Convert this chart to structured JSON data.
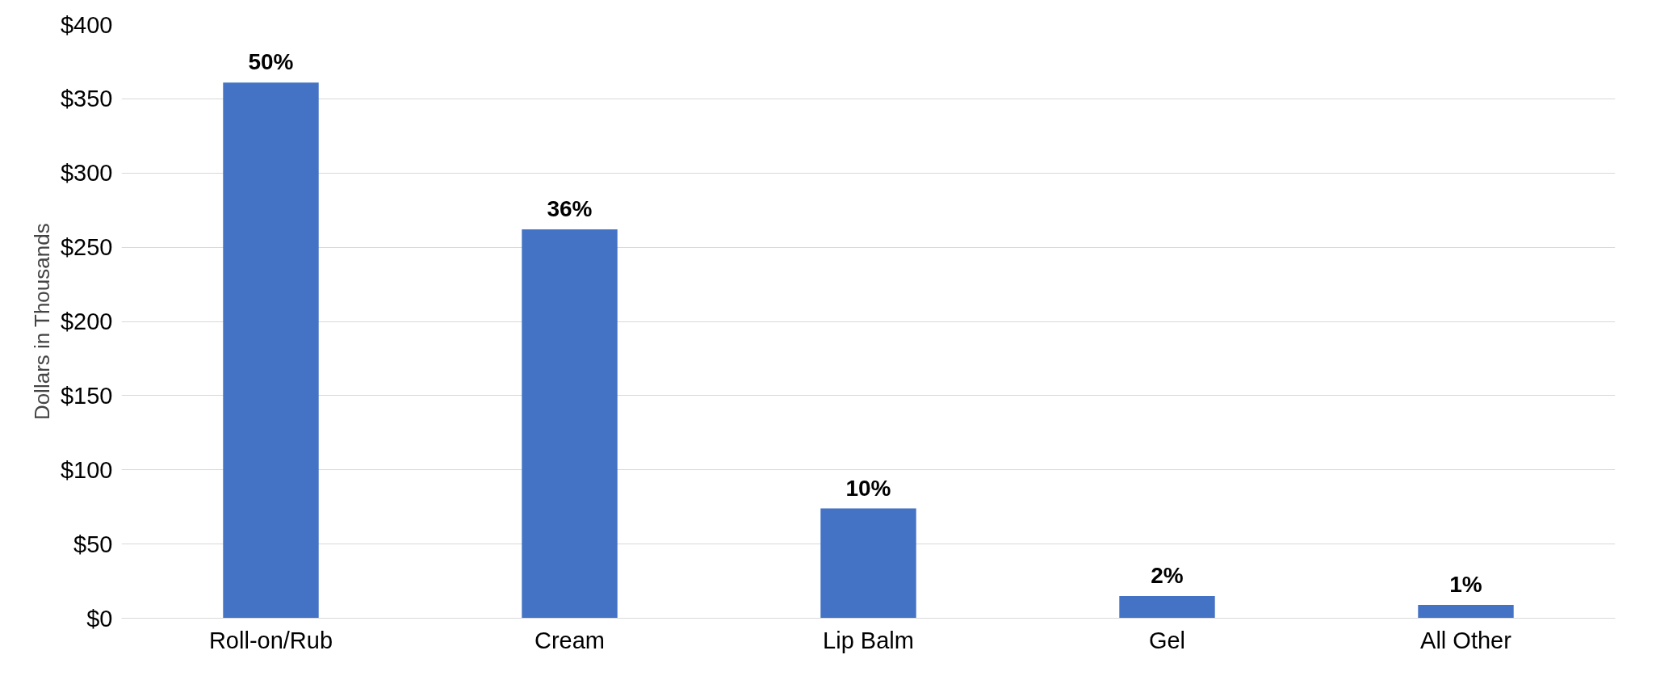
{
  "chart_data": {
    "type": "bar",
    "ylabel": "Dollars in Thousands",
    "categories": [
      "Roll-on/Rub",
      "Cream",
      "Lip Balm",
      "Gel",
      "All Other"
    ],
    "values": [
      361,
      262,
      74,
      15,
      9
    ],
    "annotations": [
      {
        "text": "50%",
        "x": "Roll-on/Rub",
        "y": 361
      },
      {
        "text": "36%",
        "x": "Cream",
        "y": 262
      },
      {
        "text": "10%",
        "x": "Lip Balm",
        "y": 74
      },
      {
        "text": "2%",
        "x": "Gel",
        "y": 15
      },
      {
        "text": "1%",
        "x": "All Other",
        "y": 9
      }
    ],
    "color": "#4472c4",
    "ylim": [
      0,
      400
    ],
    "yticks": [
      {
        "value": 0,
        "label": "$0"
      },
      {
        "value": 50,
        "label": "$50"
      },
      {
        "value": 100,
        "label": "$100"
      },
      {
        "value": 150,
        "label": "$150"
      },
      {
        "value": 200,
        "label": "$200"
      },
      {
        "value": 250,
        "label": "$250"
      },
      {
        "value": 300,
        "label": "$300"
      },
      {
        "value": 350,
        "label": "$350"
      },
      {
        "value": 400,
        "label": "$400"
      }
    ],
    "grid": "y"
  }
}
